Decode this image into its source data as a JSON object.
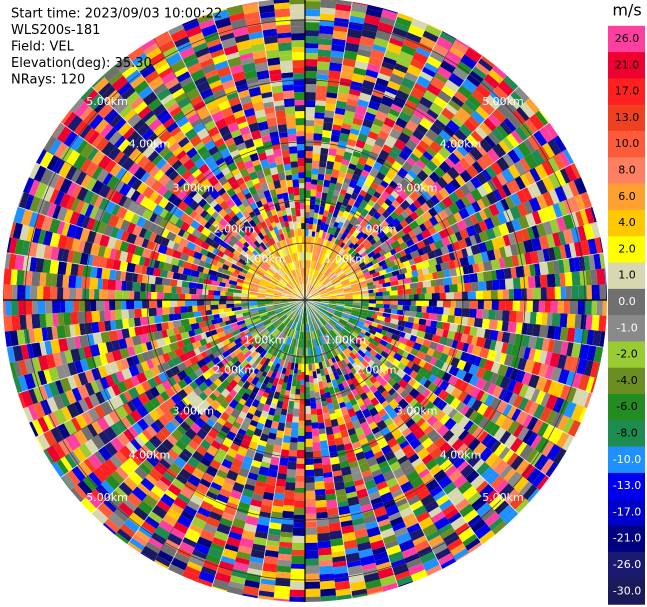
{
  "info": {
    "lines": [
      "Start time: 2023/09/03 10:00:22",
      "WLS200s-181",
      "Field: VEL",
      "Elevation(deg): 35.30",
      "NRays: 120"
    ]
  },
  "colorbar": {
    "title": "m/s",
    "ticks": [
      {
        "value": 26,
        "label": "26.0"
      },
      {
        "value": 21,
        "label": "21.0"
      },
      {
        "value": 17,
        "label": "17.0"
      },
      {
        "value": 13,
        "label": "13.0"
      },
      {
        "value": 10,
        "label": "10.0"
      },
      {
        "value": 8,
        "label": "8.0"
      },
      {
        "value": 6,
        "label": "6.0"
      },
      {
        "value": 4,
        "label": "4.0"
      },
      {
        "value": 2,
        "label": "2.0"
      },
      {
        "value": 1,
        "label": "1.0"
      },
      {
        "value": 0,
        "label": "0.0"
      },
      {
        "value": -1,
        "label": "-1.0"
      },
      {
        "value": -2,
        "label": "-2.0"
      },
      {
        "value": -4,
        "label": "-4.0"
      },
      {
        "value": -6,
        "label": "-6.0"
      },
      {
        "value": -8,
        "label": "-8.0"
      },
      {
        "value": -10,
        "label": "-10.0"
      },
      {
        "value": -13,
        "label": "-13.0"
      },
      {
        "value": -17,
        "label": "-17.0"
      },
      {
        "value": -21,
        "label": "-21.0"
      },
      {
        "value": -26,
        "label": "-26.0"
      },
      {
        "value": -30,
        "label": "-30.0"
      }
    ],
    "colors": [
      "#ff3fa0",
      "#ee0030",
      "#ff2020",
      "#f04020",
      "#ff5a3a",
      "#ff8060",
      "#ffa030",
      "#ffc800",
      "#ffff00",
      "#d8d8b0",
      "#707070",
      "#8a8a8a",
      "#99cc33",
      "#6b8e23",
      "#228b22",
      "#1e8b50",
      "#1e90ff",
      "#0000ee",
      "#0000cc",
      "#000080",
      "#191970",
      "#1a1a5a"
    ]
  },
  "rings": {
    "labels": [
      "1.00km",
      "2.00km",
      "3.00km",
      "4.00km",
      "5.00km"
    ]
  }
}
